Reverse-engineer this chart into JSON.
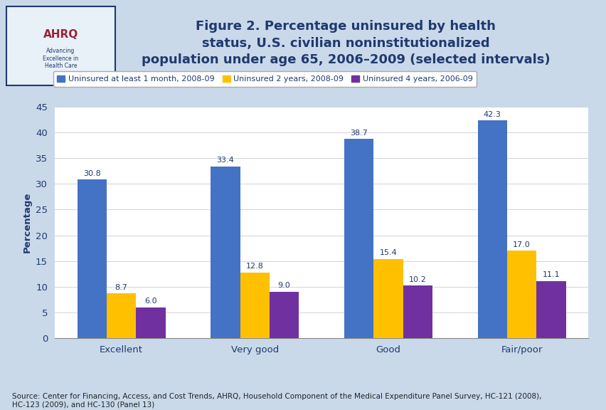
{
  "title": "Figure 2. Percentage uninsured by health\nstatus, U.S. civilian noninstitutionalized\npopulation under age 65, 2006–2009 (selected intervals)",
  "title_color": "#1f3a6e",
  "title_fontsize": 13,
  "categories": [
    "Excellent",
    "Very good",
    "Good",
    "Fair/poor"
  ],
  "series": [
    {
      "label": "Uninsured at least 1 month, 2008-09",
      "values": [
        30.8,
        33.4,
        38.7,
        42.3
      ],
      "color": "#4472c4"
    },
    {
      "label": "Uninsured 2 years, 2008-09",
      "values": [
        8.7,
        12.8,
        15.4,
        17.0
      ],
      "color": "#ffc000"
    },
    {
      "label": "Uninsured 4 years, 2006-09",
      "values": [
        6.0,
        9.0,
        10.2,
        11.1
      ],
      "color": "#7030a0"
    }
  ],
  "ylabel": "Percentage",
  "ylim": [
    0,
    45
  ],
  "yticks": [
    0,
    5,
    10,
    15,
    20,
    25,
    30,
    35,
    40,
    45
  ],
  "bar_width": 0.22,
  "plot_bg": "#ffffff",
  "outer_bg": "#c9d9ea",
  "header_bg": "#ffffff",
  "separator_color": "#1f3a6e",
  "source_text": "Source: Center for Financing, Access, and Cost Trends, AHRQ, Household Component of the Medical Expenditure Panel Survey, HC-121 (2008),\nHC-123 (2009), and HC-130 (Panel 13)",
  "source_fontsize": 7.5,
  "axis_fontsize": 9.5,
  "legend_fontsize": 8,
  "value_label_color": "#1f3a6e",
  "value_label_fontsize": 8,
  "tick_label_color": "#1f3a6e"
}
